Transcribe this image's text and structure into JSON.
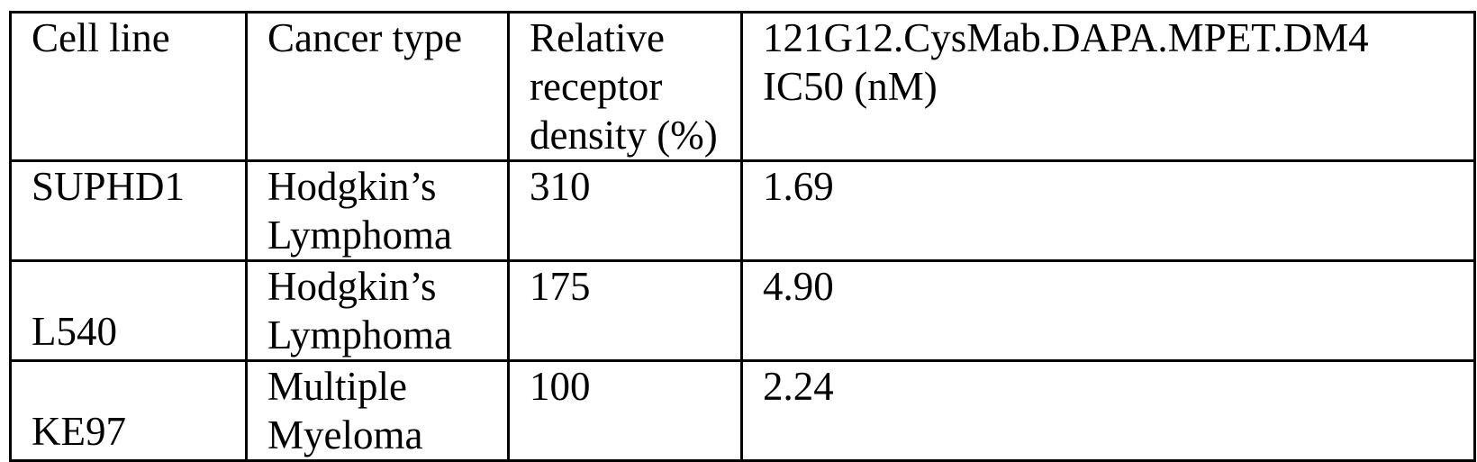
{
  "table": {
    "headers": [
      [
        "Cell line"
      ],
      [
        "Cancer type"
      ],
      [
        "Relative",
        "receptor",
        "density (%)"
      ],
      [
        "121G12.CysMab.DAPA.MPET.DM4",
        "IC50 (nM)"
      ]
    ],
    "rows": [
      {
        "cell_line": "SUPHD1",
        "cancer_type": [
          "Hodgkin’s",
          "Lymphoma"
        ],
        "density": "310",
        "ic50": "1.69"
      },
      {
        "cell_line": "L540",
        "cancer_type": [
          "Hodgkin’s",
          "Lymphoma"
        ],
        "density": "175",
        "ic50": "4.90"
      },
      {
        "cell_line": "KE97",
        "cancer_type": [
          "Multiple",
          "Myeloma"
        ],
        "density": "100",
        "ic50": "2.24"
      }
    ]
  }
}
